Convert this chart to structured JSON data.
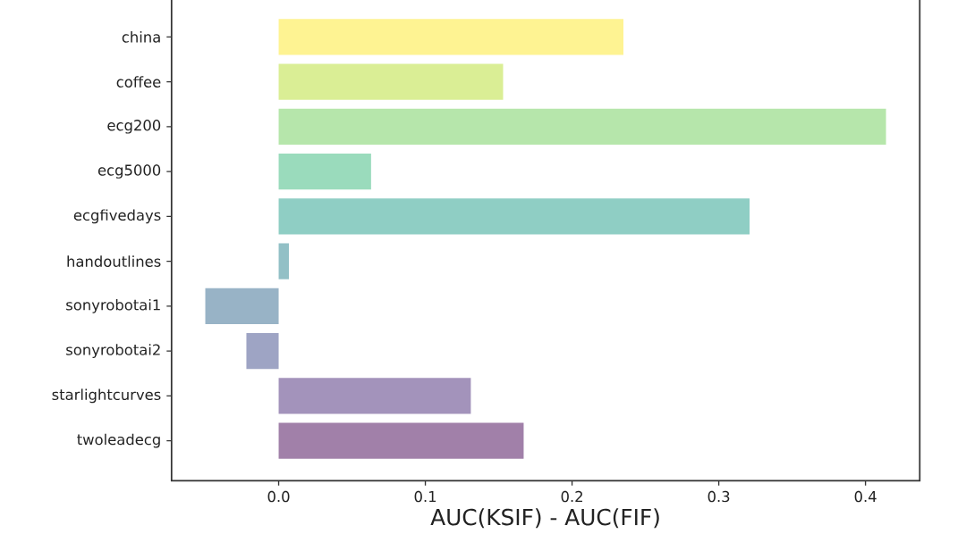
{
  "chart_data": {
    "type": "bar",
    "orientation": "horizontal",
    "categories": [
      "china",
      "coffee",
      "ecg200",
      "ecg5000",
      "ecgfivedays",
      "handoutlines",
      "sonyrobotai1",
      "sonyrobotai2",
      "starlightcurves",
      "twoleadecg"
    ],
    "values": [
      0.235,
      0.153,
      0.414,
      0.063,
      0.321,
      0.007,
      -0.05,
      -0.022,
      0.131,
      0.167
    ],
    "colors": [
      "#fef392",
      "#daee95",
      "#b6e6ab",
      "#9adbbc",
      "#8fcec4",
      "#92c0c6",
      "#98b3c6",
      "#9ea4c4",
      "#a393bb",
      "#a180a9"
    ],
    "xlabel": "AUC(KSIF) - AUC(FIF)",
    "xlim": [
      -0.073,
      0.437
    ],
    "xticks": [
      {
        "value": 0,
        "label": "0.0"
      },
      0.1,
      0.2,
      0.3,
      0.4
    ]
  }
}
